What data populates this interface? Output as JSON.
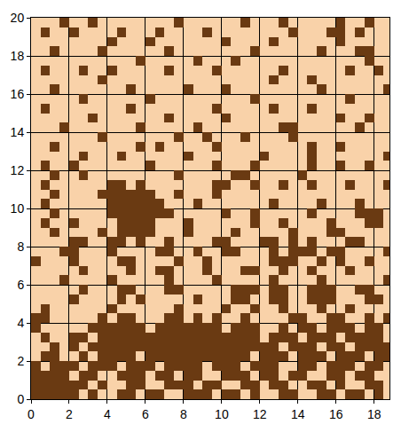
{
  "chart_data": {
    "type": "heatmap",
    "x": [
      0.25,
      0.75,
      1.25,
      1.75,
      2.25,
      2.75,
      3.25,
      3.75,
      4.25,
      4.75,
      5.25,
      5.75,
      6.25,
      6.75,
      7.25,
      7.75,
      8.25,
      8.75,
      9.25,
      9.75,
      10.25,
      10.75,
      11.25,
      11.75,
      12.25,
      12.75,
      13.25,
      13.75,
      14.25,
      14.75,
      15.25,
      15.75,
      16.25,
      16.75,
      17.25,
      17.75,
      18.25,
      18.75
    ],
    "y": [
      0.25,
      0.75,
      1.25,
      1.75,
      2.25,
      2.75,
      3.25,
      3.75,
      4.25,
      4.75,
      5.25,
      5.75,
      6.25,
      6.75,
      7.25,
      7.75,
      8.25,
      8.75,
      9.25,
      9.75,
      10.25,
      10.75,
      11.25,
      11.75,
      12.25,
      12.75,
      13.25,
      13.75,
      14.25,
      14.75,
      15.25,
      15.75,
      16.25,
      16.75,
      17.25,
      17.75,
      18.25,
      18.75,
      19.25,
      19.75
    ],
    "z": [
      [
        1,
        1,
        1,
        1,
        1,
        0,
        1,
        0,
        0,
        1,
        1,
        0,
        1,
        1,
        0,
        0,
        1,
        1,
        1,
        0,
        1,
        1,
        0,
        1,
        0,
        0,
        1,
        1,
        0,
        0,
        1,
        1,
        0,
        1,
        1,
        0,
        1,
        0
      ],
      [
        1,
        1,
        1,
        1,
        1,
        1,
        0,
        1,
        0,
        0,
        1,
        1,
        0,
        0,
        1,
        1,
        1,
        0,
        1,
        1,
        0,
        0,
        1,
        1,
        0,
        1,
        1,
        0,
        0,
        1,
        1,
        0,
        1,
        0,
        0,
        1,
        1,
        0
      ],
      [
        1,
        1,
        1,
        1,
        0,
        1,
        1,
        0,
        0,
        1,
        1,
        1,
        0,
        1,
        1,
        0,
        1,
        1,
        0,
        0,
        1,
        1,
        1,
        0,
        1,
        1,
        0,
        1,
        1,
        0,
        0,
        1,
        1,
        0,
        1,
        1,
        0,
        0
      ],
      [
        1,
        0,
        1,
        1,
        1,
        0,
        1,
        1,
        1,
        0,
        1,
        1,
        1,
        0,
        1,
        1,
        1,
        1,
        0,
        1,
        1,
        1,
        0,
        1,
        1,
        1,
        0,
        0,
        1,
        1,
        0,
        1,
        1,
        1,
        0,
        1,
        1,
        0
      ],
      [
        0,
        1,
        1,
        0,
        0,
        1,
        0,
        1,
        1,
        1,
        1,
        0,
        1,
        1,
        1,
        1,
        1,
        1,
        1,
        1,
        1,
        1,
        1,
        0,
        1,
        1,
        1,
        0,
        1,
        1,
        1,
        0,
        1,
        1,
        1,
        0,
        1,
        1
      ],
      [
        0,
        0,
        1,
        0,
        1,
        0,
        1,
        1,
        1,
        1,
        1,
        1,
        1,
        1,
        1,
        1,
        1,
        1,
        1,
        1,
        1,
        1,
        1,
        1,
        1,
        1,
        0,
        1,
        1,
        1,
        0,
        1,
        1,
        0,
        1,
        1,
        1,
        1
      ],
      [
        0,
        1,
        0,
        0,
        1,
        1,
        0,
        1,
        1,
        1,
        1,
        1,
        1,
        1,
        1,
        1,
        1,
        1,
        1,
        1,
        1,
        1,
        1,
        1,
        0,
        1,
        1,
        1,
        0,
        1,
        1,
        1,
        0,
        1,
        1,
        1,
        1,
        0
      ],
      [
        1,
        0,
        0,
        0,
        0,
        0,
        1,
        1,
        1,
        1,
        1,
        1,
        0,
        1,
        1,
        1,
        1,
        1,
        1,
        1,
        0,
        1,
        1,
        1,
        0,
        0,
        1,
        0,
        1,
        1,
        0,
        1,
        1,
        1,
        0,
        1,
        1,
        0
      ],
      [
        1,
        1,
        0,
        0,
        0,
        0,
        0,
        1,
        0,
        1,
        1,
        0,
        0,
        0,
        1,
        1,
        0,
        1,
        0,
        1,
        0,
        0,
        1,
        0,
        0,
        0,
        0,
        1,
        1,
        0,
        0,
        1,
        1,
        0,
        0,
        1,
        0,
        1
      ],
      [
        0,
        1,
        0,
        0,
        0,
        0,
        0,
        0,
        1,
        0,
        0,
        0,
        0,
        0,
        0,
        1,
        0,
        0,
        0,
        0,
        1,
        0,
        0,
        1,
        0,
        0,
        1,
        0,
        0,
        0,
        1,
        0,
        0,
        1,
        0,
        0,
        0,
        0
      ],
      [
        0,
        0,
        0,
        0,
        1,
        0,
        0,
        0,
        0,
        1,
        0,
        1,
        0,
        0,
        0,
        0,
        0,
        1,
        0,
        0,
        0,
        1,
        1,
        0,
        0,
        1,
        1,
        0,
        0,
        1,
        1,
        1,
        0,
        0,
        0,
        1,
        1,
        0
      ],
      [
        0,
        0,
        0,
        0,
        0,
        1,
        0,
        0,
        0,
        1,
        1,
        0,
        0,
        0,
        1,
        1,
        0,
        0,
        0,
        0,
        0,
        1,
        1,
        1,
        0,
        1,
        1,
        0,
        0,
        1,
        1,
        1,
        0,
        0,
        1,
        1,
        0,
        0
      ],
      [
        0,
        0,
        0,
        1,
        0,
        0,
        0,
        0,
        1,
        0,
        0,
        0,
        0,
        0,
        1,
        0,
        0,
        0,
        0,
        1,
        0,
        0,
        0,
        0,
        0,
        1,
        0,
        0,
        0,
        0,
        1,
        0,
        0,
        0,
        0,
        0,
        0,
        1
      ],
      [
        0,
        0,
        0,
        0,
        0,
        1,
        0,
        0,
        0,
        0,
        1,
        0,
        0,
        1,
        1,
        0,
        0,
        0,
        1,
        0,
        0,
        0,
        1,
        1,
        0,
        0,
        1,
        0,
        0,
        1,
        0,
        0,
        0,
        1,
        0,
        0,
        0,
        0
      ],
      [
        1,
        0,
        0,
        0,
        1,
        0,
        0,
        0,
        0,
        1,
        1,
        0,
        0,
        0,
        0,
        1,
        0,
        0,
        1,
        0,
        0,
        0,
        0,
        0,
        0,
        1,
        1,
        1,
        0,
        0,
        1,
        0,
        1,
        0,
        0,
        1,
        0,
        0
      ],
      [
        0,
        0,
        0,
        1,
        1,
        0,
        0,
        0,
        1,
        0,
        0,
        0,
        0,
        1,
        1,
        0,
        0,
        1,
        0,
        0,
        1,
        1,
        0,
        0,
        0,
        1,
        0,
        1,
        1,
        1,
        0,
        1,
        1,
        0,
        0,
        0,
        0,
        1
      ],
      [
        0,
        0,
        0,
        0,
        1,
        1,
        0,
        0,
        1,
        1,
        0,
        1,
        0,
        0,
        1,
        0,
        0,
        0,
        0,
        1,
        1,
        0,
        0,
        0,
        1,
        1,
        0,
        1,
        0,
        1,
        0,
        0,
        0,
        1,
        1,
        0,
        0,
        0
      ],
      [
        0,
        0,
        1,
        0,
        0,
        0,
        0,
        1,
        0,
        1,
        1,
        1,
        1,
        0,
        0,
        0,
        1,
        0,
        0,
        0,
        0,
        1,
        0,
        0,
        0,
        0,
        0,
        1,
        0,
        0,
        0,
        1,
        1,
        0,
        0,
        0,
        0,
        0
      ],
      [
        0,
        1,
        0,
        0,
        1,
        0,
        0,
        0,
        0,
        1,
        1,
        1,
        1,
        0,
        0,
        0,
        1,
        0,
        0,
        0,
        0,
        0,
        0,
        1,
        0,
        0,
        1,
        0,
        0,
        0,
        0,
        1,
        0,
        0,
        0,
        1,
        1,
        0
      ],
      [
        0,
        0,
        1,
        0,
        0,
        0,
        0,
        0,
        1,
        1,
        1,
        1,
        1,
        1,
        1,
        0,
        0,
        0,
        0,
        0,
        1,
        0,
        0,
        1,
        0,
        0,
        0,
        0,
        0,
        1,
        0,
        0,
        0,
        0,
        1,
        1,
        1,
        0
      ],
      [
        0,
        1,
        0,
        0,
        0,
        0,
        0,
        0,
        1,
        1,
        1,
        1,
        1,
        1,
        0,
        0,
        0,
        1,
        0,
        0,
        0,
        0,
        0,
        0,
        0,
        1,
        0,
        0,
        0,
        0,
        1,
        0,
        0,
        0,
        1,
        0,
        0,
        0
      ],
      [
        0,
        0,
        1,
        0,
        0,
        0,
        0,
        1,
        1,
        1,
        1,
        1,
        1,
        0,
        0,
        1,
        0,
        0,
        0,
        1,
        0,
        0,
        0,
        0,
        0,
        0,
        0,
        0,
        0,
        0,
        0,
        0,
        0,
        0,
        0,
        0,
        0,
        0
      ],
      [
        0,
        1,
        0,
        0,
        0,
        0,
        0,
        0,
        1,
        1,
        0,
        1,
        0,
        0,
        0,
        0,
        0,
        0,
        0,
        1,
        1,
        0,
        0,
        1,
        0,
        0,
        1,
        0,
        0,
        1,
        0,
        0,
        0,
        1,
        0,
        0,
        0,
        1
      ],
      [
        0,
        0,
        1,
        0,
        0,
        1,
        0,
        0,
        0,
        0,
        0,
        0,
        0,
        0,
        0,
        1,
        0,
        0,
        0,
        0,
        0,
        1,
        1,
        0,
        0,
        0,
        0,
        0,
        1,
        0,
        0,
        0,
        0,
        0,
        0,
        0,
        0,
        0
      ],
      [
        0,
        1,
        0,
        0,
        1,
        0,
        0,
        0,
        0,
        0,
        0,
        0,
        1,
        0,
        0,
        0,
        0,
        0,
        0,
        1,
        0,
        0,
        0,
        1,
        0,
        0,
        0,
        0,
        0,
        1,
        0,
        0,
        1,
        0,
        0,
        1,
        0,
        0
      ],
      [
        0,
        0,
        0,
        0,
        0,
        1,
        0,
        0,
        0,
        1,
        0,
        0,
        0,
        0,
        0,
        0,
        1,
        0,
        0,
        0,
        0,
        0,
        0,
        0,
        1,
        0,
        0,
        0,
        0,
        1,
        0,
        0,
        0,
        0,
        0,
        0,
        0,
        1
      ],
      [
        0,
        0,
        1,
        0,
        0,
        0,
        0,
        0,
        0,
        0,
        0,
        1,
        0,
        1,
        0,
        0,
        0,
        0,
        0,
        1,
        0,
        0,
        0,
        0,
        0,
        0,
        0,
        0,
        0,
        1,
        0,
        0,
        1,
        0,
        0,
        0,
        0,
        0
      ],
      [
        0,
        0,
        0,
        0,
        0,
        0,
        0,
        1,
        0,
        0,
        0,
        0,
        0,
        0,
        0,
        1,
        0,
        0,
        1,
        0,
        0,
        0,
        1,
        0,
        0,
        0,
        0,
        1,
        0,
        0,
        0,
        0,
        0,
        0,
        0,
        0,
        0,
        0
      ],
      [
        0,
        0,
        0,
        1,
        0,
        0,
        0,
        0,
        0,
        0,
        0,
        1,
        0,
        0,
        0,
        0,
        0,
        1,
        0,
        0,
        0,
        0,
        0,
        0,
        0,
        0,
        1,
        1,
        0,
        0,
        0,
        0,
        0,
        0,
        1,
        0,
        0,
        0
      ],
      [
        0,
        0,
        0,
        0,
        0,
        0,
        1,
        0,
        0,
        0,
        0,
        0,
        0,
        0,
        1,
        0,
        0,
        0,
        0,
        0,
        1,
        0,
        0,
        0,
        0,
        0,
        0,
        0,
        0,
        0,
        0,
        0,
        1,
        0,
        0,
        1,
        0,
        0
      ],
      [
        0,
        1,
        0,
        0,
        0,
        0,
        0,
        0,
        0,
        0,
        1,
        0,
        0,
        0,
        0,
        0,
        0,
        0,
        0,
        1,
        0,
        0,
        0,
        0,
        0,
        1,
        0,
        0,
        0,
        1,
        0,
        0,
        0,
        0,
        0,
        0,
        0,
        0
      ],
      [
        0,
        0,
        0,
        0,
        0,
        1,
        0,
        0,
        0,
        0,
        0,
        0,
        1,
        0,
        0,
        0,
        0,
        0,
        0,
        0,
        0,
        0,
        0,
        1,
        0,
        0,
        0,
        0,
        0,
        0,
        0,
        0,
        0,
        1,
        0,
        0,
        0,
        0
      ],
      [
        0,
        0,
        1,
        0,
        0,
        0,
        0,
        0,
        0,
        0,
        1,
        0,
        0,
        0,
        0,
        0,
        1,
        0,
        0,
        0,
        1,
        0,
        0,
        0,
        0,
        0,
        0,
        0,
        0,
        0,
        1,
        0,
        0,
        0,
        0,
        0,
        0,
        1
      ],
      [
        0,
        0,
        0,
        0,
        0,
        0,
        0,
        1,
        0,
        0,
        0,
        0,
        0,
        0,
        0,
        0,
        0,
        0,
        0,
        0,
        0,
        0,
        0,
        0,
        0,
        1,
        0,
        0,
        0,
        1,
        0,
        0,
        0,
        0,
        0,
        0,
        0,
        0
      ],
      [
        0,
        1,
        0,
        0,
        0,
        1,
        0,
        0,
        1,
        0,
        0,
        0,
        0,
        0,
        1,
        0,
        0,
        0,
        0,
        1,
        0,
        0,
        0,
        0,
        0,
        0,
        1,
        0,
        0,
        0,
        0,
        0,
        0,
        1,
        0,
        0,
        1,
        0
      ],
      [
        0,
        0,
        0,
        0,
        0,
        0,
        0,
        0,
        0,
        0,
        0,
        1,
        0,
        0,
        0,
        0,
        0,
        1,
        0,
        0,
        0,
        1,
        0,
        0,
        0,
        0,
        0,
        0,
        0,
        0,
        0,
        0,
        0,
        0,
        0,
        1,
        0,
        0
      ],
      [
        0,
        0,
        1,
        0,
        0,
        0,
        0,
        1,
        0,
        0,
        0,
        0,
        0,
        0,
        1,
        0,
        0,
        0,
        0,
        0,
        0,
        0,
        0,
        1,
        0,
        0,
        0,
        0,
        0,
        0,
        1,
        0,
        0,
        0,
        1,
        1,
        0,
        0
      ],
      [
        0,
        0,
        0,
        0,
        0,
        0,
        0,
        0,
        1,
        0,
        0,
        0,
        1,
        0,
        0,
        0,
        0,
        0,
        0,
        0,
        1,
        0,
        0,
        0,
        0,
        1,
        0,
        0,
        0,
        0,
        0,
        0,
        1,
        0,
        0,
        0,
        0,
        0
      ],
      [
        0,
        1,
        0,
        0,
        1,
        0,
        0,
        0,
        0,
        1,
        0,
        0,
        0,
        1,
        0,
        0,
        0,
        0,
        1,
        0,
        0,
        0,
        0,
        0,
        0,
        0,
        0,
        1,
        0,
        0,
        0,
        1,
        1,
        0,
        1,
        0,
        0,
        0
      ],
      [
        0,
        0,
        0,
        1,
        0,
        0,
        1,
        0,
        0,
        0,
        0,
        0,
        0,
        0,
        0,
        1,
        0,
        0,
        0,
        0,
        0,
        0,
        1,
        0,
        0,
        0,
        1,
        0,
        0,
        0,
        0,
        0,
        1,
        0,
        0,
        1,
        0,
        0
      ]
    ],
    "zlim": [
      0,
      1
    ],
    "colors": [
      "#f9d2a9",
      "#6a3a12"
    ],
    "xlim": [
      0,
      18.8
    ],
    "ylim": [
      0,
      20
    ],
    "xticks": [
      0,
      2,
      4,
      6,
      8,
      10,
      12,
      14,
      16,
      18
    ],
    "yticks": [
      0,
      2,
      4,
      6,
      8,
      10,
      12,
      14,
      16,
      18,
      20
    ],
    "grid": true
  }
}
